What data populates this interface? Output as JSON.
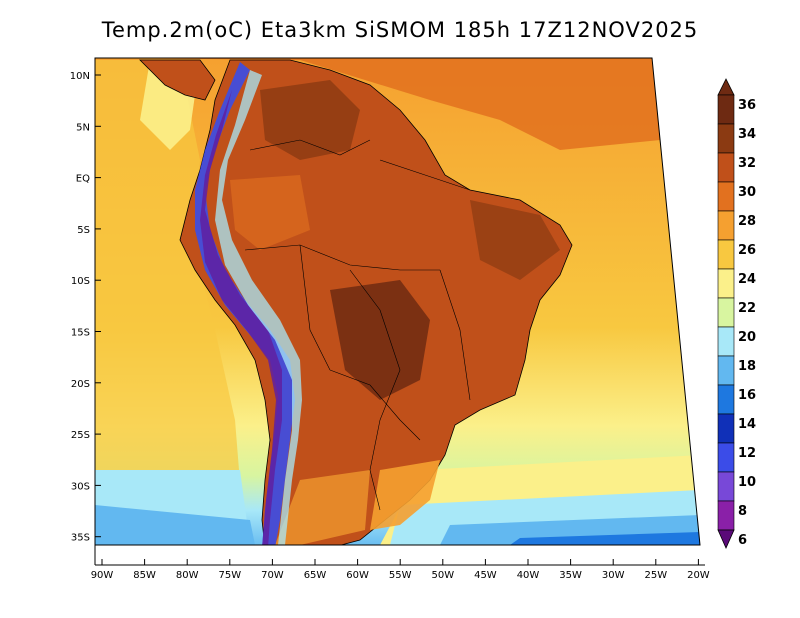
{
  "title": "Temp.2m(oC) Eta3km SiSMOM 185h 17Z12NOV2025",
  "y_axis_labels": [
    "10N",
    "5N",
    "EQ",
    "5S",
    "10S",
    "15S",
    "20S",
    "25S",
    "30S",
    "35S"
  ],
  "x_axis_labels": [
    "90W",
    "85W",
    "80W",
    "75W",
    "70W",
    "65W",
    "60W",
    "55W",
    "50W",
    "45W",
    "40W",
    "35W",
    "30W",
    "25W",
    "20W"
  ],
  "colorbar": {
    "labels": [
      "36",
      "34",
      "32",
      "30",
      "28",
      "26",
      "24",
      "22",
      "20",
      "18",
      "16",
      "14",
      "12",
      "10",
      "8",
      "6"
    ],
    "colors": [
      "#6e2a12",
      "#8b3a12",
      "#c0501a",
      "#e2711f",
      "#f5a030",
      "#f8c840",
      "#fbf08a",
      "#d8f5a0",
      "#a8e8f8",
      "#62b8f0",
      "#1e78e0",
      "#1030b8",
      "#3b4ce8",
      "#7848d8",
      "#8a20a8",
      "#5a0a78"
    ],
    "unit": "oC"
  },
  "map_colors": {
    "ocean_warm": "#f5a030",
    "ocean_mild": "#f8c840",
    "ocean_pale": "#fbf08a",
    "ocean_cool": "#d8f5a0",
    "ocean_cold": "#a8e8f8",
    "ocean_colder": "#62b8f0",
    "land_hot": "#c0501a",
    "land_hotter": "#8b3a12",
    "andes": "#3b4ce8",
    "andes_deep": "#6020a0"
  }
}
